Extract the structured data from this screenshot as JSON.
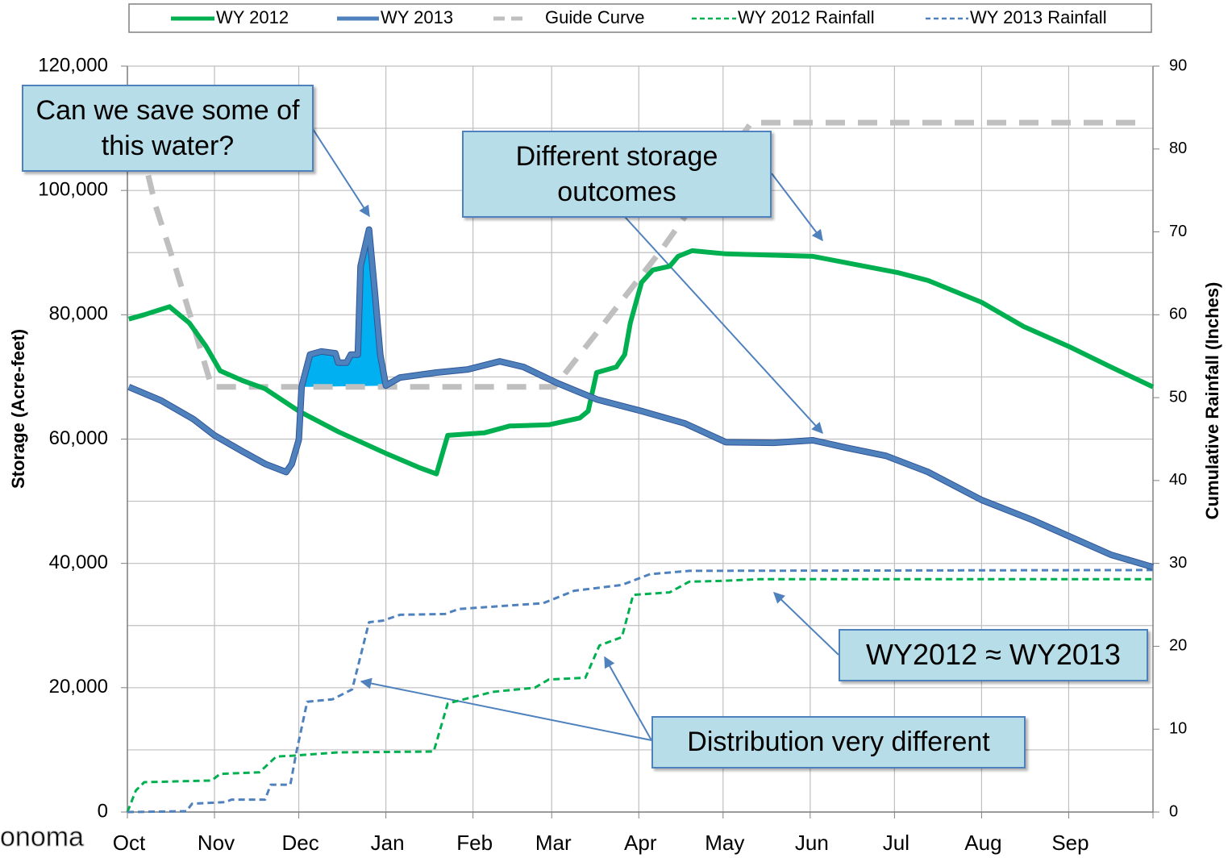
{
  "chart_data": {
    "type": "line",
    "xlim": [
      0,
      365
    ],
    "xticks": [
      {
        "value": 0,
        "label": "Oct"
      },
      {
        "value": 31,
        "label": "Nov"
      },
      {
        "value": 61,
        "label": "Dec"
      },
      {
        "value": 92,
        "label": "Jan"
      },
      {
        "value": 123,
        "label": "Feb"
      },
      {
        "value": 151,
        "label": "Mar"
      },
      {
        "value": 182,
        "label": "Apr"
      },
      {
        "value": 212,
        "label": "May"
      },
      {
        "value": 243,
        "label": "Jun"
      },
      {
        "value": 273,
        "label": "Jul"
      },
      {
        "value": 304,
        "label": "Aug"
      },
      {
        "value": 335,
        "label": "Sep"
      }
    ],
    "ylabel": "Storage (Acre-feet)",
    "y2label": "Cumulative Rainfall (Inches)",
    "ylim": [
      0,
      120000
    ],
    "yticks": [
      0,
      {
        "value": 20000,
        "label": "20,000"
      },
      {
        "value": 40000,
        "label": "40,000"
      },
      {
        "value": 60000,
        "label": "60,000"
      },
      {
        "value": 80000,
        "label": "80,000"
      },
      {
        "value": 100000,
        "label": "100,000"
      },
      {
        "value": 120000,
        "label": "120,000"
      }
    ],
    "grid_step": 10000,
    "y2lim": [
      0,
      90
    ],
    "y2ticks": [
      0,
      10,
      20,
      30,
      40,
      50,
      60,
      70,
      80,
      90
    ],
    "grid": true,
    "legend": "top",
    "series": [
      {
        "name": "WY 2012",
        "color": "#00b050",
        "style": "solid",
        "x": [
          0.5,
          6,
          15,
          22,
          28,
          33,
          41,
          49,
          61,
          75,
          92,
          104,
          110,
          114,
          127,
          136,
          150,
          161,
          164,
          167,
          174,
          177,
          179,
          183,
          187,
          193,
          196,
          201,
          213,
          244,
          259,
          274,
          285,
          304,
          319,
          335,
          350,
          365
        ],
        "values": [
          79300,
          80000,
          81300,
          78700,
          74900,
          71000,
          69400,
          68100,
          64500,
          61200,
          57700,
          55400,
          54400,
          60600,
          61000,
          62100,
          62300,
          63400,
          64500,
          70700,
          71600,
          73600,
          78700,
          85200,
          87200,
          87800,
          89400,
          90300,
          89800,
          89400,
          88100,
          86800,
          85500,
          82000,
          78100,
          74900,
          71600,
          68400
        ]
      },
      {
        "name": "WY 2013",
        "color": "#4f81bd",
        "style": "solid",
        "x": [
          0.5,
          12,
          23.5,
          31,
          41,
          49,
          56.5,
          58.5,
          61,
          62,
          65,
          69,
          74,
          75,
          78,
          79.5,
          82,
          83,
          86,
          88,
          90,
          92,
          97,
          110,
          121,
          132.5,
          141,
          153,
          167,
          183,
          198.5,
          213,
          230,
          244,
          256,
          270,
          285,
          304,
          322,
          335,
          350,
          365
        ],
        "values": [
          68400,
          66200,
          63200,
          60600,
          58000,
          56000,
          54700,
          56000,
          59900,
          68400,
          73600,
          74100,
          73800,
          72300,
          72300,
          73600,
          73600,
          87800,
          93700,
          83900,
          73600,
          68600,
          69900,
          70700,
          71200,
          72500,
          71600,
          69000,
          66400,
          64500,
          62500,
          59500,
          59400,
          59800,
          58600,
          57300,
          54700,
          50200,
          47000,
          44400,
          41400,
          39400
        ]
      },
      {
        "name": "Guide Curve",
        "color": "#bfbfbf",
        "style": "dashed",
        "x": [
          2,
          10,
          17,
          24,
          30,
          152,
          190,
          222,
          360
        ],
        "values": [
          112500,
          97600,
          87800,
          77500,
          68400,
          68400,
          90400,
          110900,
          110900
        ]
      },
      {
        "name": "WY 2012 Rainfall",
        "color": "#00b050",
        "style": "dotted",
        "axis": "y2",
        "x": [
          0,
          3,
          6,
          30,
          33,
          47,
          53,
          59,
          75,
          109,
          114,
          130,
          145,
          150,
          163,
          168,
          176,
          180,
          193,
          200,
          212,
          225,
          365
        ],
        "values": [
          0,
          2.6,
          3.6,
          3.8,
          4.6,
          4.8,
          6.7,
          6.8,
          7.2,
          7.3,
          13.1,
          14.5,
          15,
          16,
          16.2,
          20.1,
          21.1,
          26.2,
          26.5,
          27.8,
          27.9,
          28.1,
          28.1
        ]
      },
      {
        "name": "WY 2013 Rainfall",
        "color": "#4f81bd",
        "style": "dotted",
        "axis": "y2",
        "x": [
          0,
          21,
          23,
          35,
          37,
          49,
          51,
          58,
          60,
          64,
          73,
          80,
          86,
          91,
          97,
          113,
          118,
          148,
          159,
          176,
          186,
          200,
          365
        ],
        "values": [
          0,
          0.1,
          1.0,
          1.2,
          1.5,
          1.5,
          3.3,
          3.3,
          7.0,
          13.3,
          13.6,
          14.8,
          22.9,
          23.1,
          23.8,
          23.9,
          24.5,
          25.2,
          26.7,
          27.4,
          28.7,
          29.1,
          29.2
        ]
      }
    ],
    "annotations": [
      "Can we save some of this water?",
      "Different storage outcomes",
      "WY2012 ≈ WY2013",
      "Distribution very different"
    ],
    "watermark": "onoma"
  }
}
